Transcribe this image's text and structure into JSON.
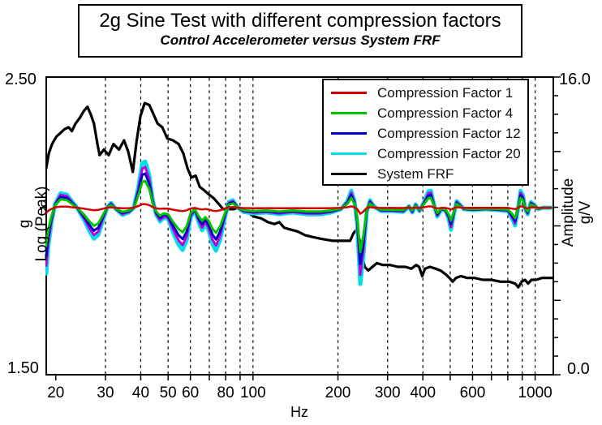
{
  "title": {
    "main": "2g Sine Test with different compression factors",
    "subtitle": "Control Accelerometer versus System FRF"
  },
  "legend": {
    "items": [
      {
        "label": "Compression Factor 1",
        "color": "#d40000"
      },
      {
        "label": "Compression Factor 4",
        "color": "#00c400"
      },
      {
        "label": "Compression Factor 12",
        "color": "#0000cc"
      },
      {
        "label": "Compression Factor 20",
        "color": "#00dfe8"
      },
      {
        "label": "System FRF",
        "color": "#000000"
      }
    ]
  },
  "axes": {
    "y_left": {
      "top_tick": "2.50",
      "bottom_tick": "1.50",
      "label_line1": "g",
      "label_line2": "Log (Peak)"
    },
    "y_right": {
      "top_tick": "16.0",
      "bottom_tick": "0.0",
      "label_line1": "Amplitude",
      "label_line2": "g/V"
    },
    "x": {
      "label": "Hz"
    }
  },
  "chart_data": {
    "type": "line",
    "title": "2g Sine Test with different compression factors",
    "subtitle": "Control Accelerometer versus System FRF",
    "grid": "vertical-dashed",
    "legend_position": "upper-right-inside",
    "x_axis": {
      "label": "Hz",
      "scale": "log",
      "min": 18.5,
      "max": 1160,
      "tick_labels": [
        "20",
        "30",
        "40",
        "50",
        "60",
        "80",
        "100",
        "200",
        "300",
        "400",
        "600",
        "1000"
      ],
      "ticks": [
        20,
        30,
        40,
        50,
        60,
        70,
        80,
        90,
        100,
        200,
        300,
        400,
        500,
        600,
        700,
        800,
        900,
        1000
      ],
      "gridlines": [
        30,
        40,
        50,
        60,
        70,
        80,
        90,
        100,
        200,
        300,
        400,
        500,
        600,
        700,
        800,
        900,
        1000
      ]
    },
    "y_left": {
      "label": "g Log (Peak)",
      "min": 1.5,
      "max": 2.5,
      "tick_values": [
        1.5,
        2.5
      ],
      "control_level": 2.06,
      "marker_value": 2.061
    },
    "y_right": {
      "label": "Amplitude g/V",
      "min": 0,
      "max": 16,
      "tick_values": [
        0.0,
        16.0
      ],
      "minor_tick_step": 1,
      "major_tick_step": 4
    },
    "series": [
      {
        "name": "System FRF",
        "color": "#000000",
        "axis": "right",
        "width": 3.2,
        "points": [
          [
            18.5,
            11.1
          ],
          [
            18.9,
            11.9
          ],
          [
            19.4,
            12.4
          ],
          [
            20.1,
            12.8
          ],
          [
            20.8,
            13.0
          ],
          [
            21.5,
            13.2
          ],
          [
            22.2,
            13.3
          ],
          [
            22.8,
            13.1
          ],
          [
            23.5,
            13.5
          ],
          [
            24.3,
            13.8
          ],
          [
            25.2,
            14.2
          ],
          [
            25.9,
            14.4
          ],
          [
            26.6,
            14.0
          ],
          [
            27.3,
            13.5
          ],
          [
            28.1,
            12.4
          ],
          [
            28.6,
            11.8
          ],
          [
            29.6,
            12.1
          ],
          [
            30.8,
            11.8
          ],
          [
            32.0,
            12.4
          ],
          [
            33.5,
            12.1
          ],
          [
            34.9,
            12.6
          ],
          [
            36.1,
            12.0
          ],
          [
            37.5,
            10.9
          ],
          [
            38.7,
            12.6
          ],
          [
            39.9,
            13.9
          ],
          [
            41.3,
            14.6
          ],
          [
            42.9,
            14.5
          ],
          [
            44.1,
            14.1
          ],
          [
            45.9,
            13.5
          ],
          [
            47.7,
            13.3
          ],
          [
            49.7,
            12.7
          ],
          [
            52.0,
            12.6
          ],
          [
            54.5,
            12.4
          ],
          [
            56.6,
            11.9
          ],
          [
            58.6,
            11.1
          ],
          [
            60.5,
            10.6
          ],
          [
            62.6,
            10.7
          ],
          [
            64.7,
            10.1
          ],
          [
            67.3,
            9.9
          ],
          [
            69.6,
            9.7
          ],
          [
            72.4,
            9.5
          ],
          [
            75.4,
            9.2
          ],
          [
            78.4,
            8.9
          ],
          [
            81.6,
            8.9
          ],
          [
            85.5,
            8.9
          ],
          [
            88.9,
            9.0
          ],
          [
            91.9,
            8.9
          ],
          [
            96.2,
            8.7
          ],
          [
            101,
            8.5
          ],
          [
            107,
            8.4
          ],
          [
            113,
            8.2
          ],
          [
            119,
            8.1
          ],
          [
            124,
            8.2
          ],
          [
            129,
            7.9
          ],
          [
            136,
            7.8
          ],
          [
            144,
            7.7
          ],
          [
            153,
            7.5
          ],
          [
            163,
            7.4
          ],
          [
            175,
            7.3
          ],
          [
            192,
            7.2
          ],
          [
            209,
            7.2
          ],
          [
            221,
            7.2
          ],
          [
            227,
            7.6
          ],
          [
            233,
            7.8
          ],
          [
            240,
            7.1
          ],
          [
            245,
            6.2
          ],
          [
            249,
            5.8
          ],
          [
            256,
            5.6
          ],
          [
            265,
            5.8
          ],
          [
            275,
            6.0
          ],
          [
            288,
            5.9
          ],
          [
            306,
            5.9
          ],
          [
            326,
            5.8
          ],
          [
            347,
            5.8
          ],
          [
            364,
            5.7
          ],
          [
            379,
            5.9
          ],
          [
            388,
            5.8
          ],
          [
            398,
            5.3
          ],
          [
            407,
            5.7
          ],
          [
            424,
            5.8
          ],
          [
            444,
            5.7
          ],
          [
            462,
            5.6
          ],
          [
            481,
            5.4
          ],
          [
            497,
            5.2
          ],
          [
            510,
            5.0
          ],
          [
            524,
            5.2
          ],
          [
            545,
            5.3
          ],
          [
            575,
            5.2
          ],
          [
            610,
            5.2
          ],
          [
            652,
            5.1
          ],
          [
            701,
            5.1
          ],
          [
            754,
            5.0
          ],
          [
            811,
            5.0
          ],
          [
            849,
            4.9
          ],
          [
            872,
            4.7
          ],
          [
            896,
            5.0
          ],
          [
            920,
            5.1
          ],
          [
            944,
            4.9
          ],
          [
            970,
            5.1
          ],
          [
            1009,
            5.1
          ],
          [
            1057,
            5.2
          ],
          [
            1085,
            5.2
          ],
          [
            1159,
            5.2
          ]
        ]
      },
      {
        "name": "Compression Factor 20",
        "color": "#00dfe8",
        "axis": "left",
        "width": 5,
        "points": [
          [
            18.5,
            1.84
          ],
          [
            18.8,
            1.93
          ],
          [
            19.3,
            2.01
          ],
          [
            19.9,
            2.075
          ],
          [
            20.8,
            2.11
          ],
          [
            21.9,
            2.105
          ],
          [
            22.8,
            2.083
          ],
          [
            23.8,
            2.061
          ],
          [
            25.2,
            2.02
          ],
          [
            26.4,
            1.98
          ],
          [
            27.3,
            1.957
          ],
          [
            28.3,
            1.97
          ],
          [
            29.4,
            2.02
          ],
          [
            30.4,
            2.061
          ],
          [
            31.4,
            2.077
          ],
          [
            32.7,
            2.056
          ],
          [
            34.4,
            2.037
          ],
          [
            36.3,
            2.045
          ],
          [
            37.8,
            2.061
          ],
          [
            39.2,
            2.13
          ],
          [
            40.5,
            2.21
          ],
          [
            41.5,
            2.216
          ],
          [
            42.9,
            2.17
          ],
          [
            44.1,
            2.088
          ],
          [
            45.3,
            2.04
          ],
          [
            46.8,
            2.015
          ],
          [
            48.4,
            2.028
          ],
          [
            50.0,
            2.023
          ],
          [
            52.0,
            1.98
          ],
          [
            54.5,
            1.936
          ],
          [
            56.3,
            1.919
          ],
          [
            58.2,
            1.952
          ],
          [
            60.1,
            2.028
          ],
          [
            62.1,
            2.053
          ],
          [
            64.2,
            2.012
          ],
          [
            66.0,
            1.985
          ],
          [
            67.8,
            2.006
          ],
          [
            69.6,
            1.985
          ],
          [
            71.9,
            1.938
          ],
          [
            73.9,
            1.917
          ],
          [
            76.4,
            1.952
          ],
          [
            79.5,
            2.028
          ],
          [
            82.1,
            2.08
          ],
          [
            84.9,
            2.086
          ],
          [
            88.4,
            2.061
          ],
          [
            92.5,
            2.047
          ],
          [
            100,
            2.042
          ],
          [
            112,
            2.045
          ],
          [
            124,
            2.039
          ],
          [
            138,
            2.045
          ],
          [
            155,
            2.039
          ],
          [
            174,
            2.039
          ],
          [
            189,
            2.045
          ],
          [
            205,
            2.056
          ],
          [
            216,
            2.083
          ],
          [
            223,
            2.118
          ],
          [
            229,
            2.083
          ],
          [
            234,
            2.007
          ],
          [
            240,
            1.805
          ],
          [
            246,
            1.898
          ],
          [
            253,
            2.047
          ],
          [
            260,
            2.086
          ],
          [
            268,
            2.066
          ],
          [
            284,
            2.05
          ],
          [
            313,
            2.05
          ],
          [
            341,
            2.047
          ],
          [
            357,
            2.066
          ],
          [
            367,
            2.045
          ],
          [
            377,
            2.072
          ],
          [
            389,
            2.05
          ],
          [
            405,
            2.083
          ],
          [
            418,
            2.116
          ],
          [
            427,
            2.118
          ],
          [
            441,
            2.061
          ],
          [
            450,
            2.031
          ],
          [
            465,
            2.056
          ],
          [
            481,
            2.05
          ],
          [
            494,
            2.023
          ],
          [
            503,
            1.987
          ],
          [
            517,
            2.047
          ],
          [
            527,
            2.083
          ],
          [
            541,
            2.072
          ],
          [
            559,
            2.056
          ],
          [
            604,
            2.053
          ],
          [
            668,
            2.056
          ],
          [
            737,
            2.053
          ],
          [
            802,
            2.05
          ],
          [
            833,
            2.02
          ],
          [
            849,
            2.001
          ],
          [
            871,
            2.061
          ],
          [
            888,
            2.118
          ],
          [
            906,
            2.102
          ],
          [
            923,
            2.056
          ],
          [
            941,
            2.039
          ],
          [
            966,
            2.08
          ],
          [
            991,
            2.072
          ],
          [
            1024,
            2.056
          ],
          [
            1065,
            2.061
          ],
          [
            1136,
            2.061
          ]
        ]
      },
      {
        "name": "unlabeled magenta trace",
        "color": "#c000d8",
        "axis": "left",
        "width": 3,
        "derived_from": "Compression Factor 20",
        "scale": 0.88,
        "base": 2.061
      },
      {
        "name": "Compression Factor 12",
        "color": "#0000cc",
        "axis": "left",
        "width": 3,
        "derived_from": "Compression Factor 20",
        "scale": 0.74,
        "base": 2.061
      },
      {
        "name": "Compression Factor 4",
        "color": "#00c400",
        "axis": "left",
        "width": 3,
        "derived_from": "Compression Factor 20",
        "scale": 0.58,
        "base": 2.061
      },
      {
        "name": "Compression Factor 1",
        "color": "#d40000",
        "axis": "left",
        "width": 2.5,
        "derived_from": "Compression Factor 20",
        "scale": 0.08,
        "base": 2.061
      }
    ]
  }
}
